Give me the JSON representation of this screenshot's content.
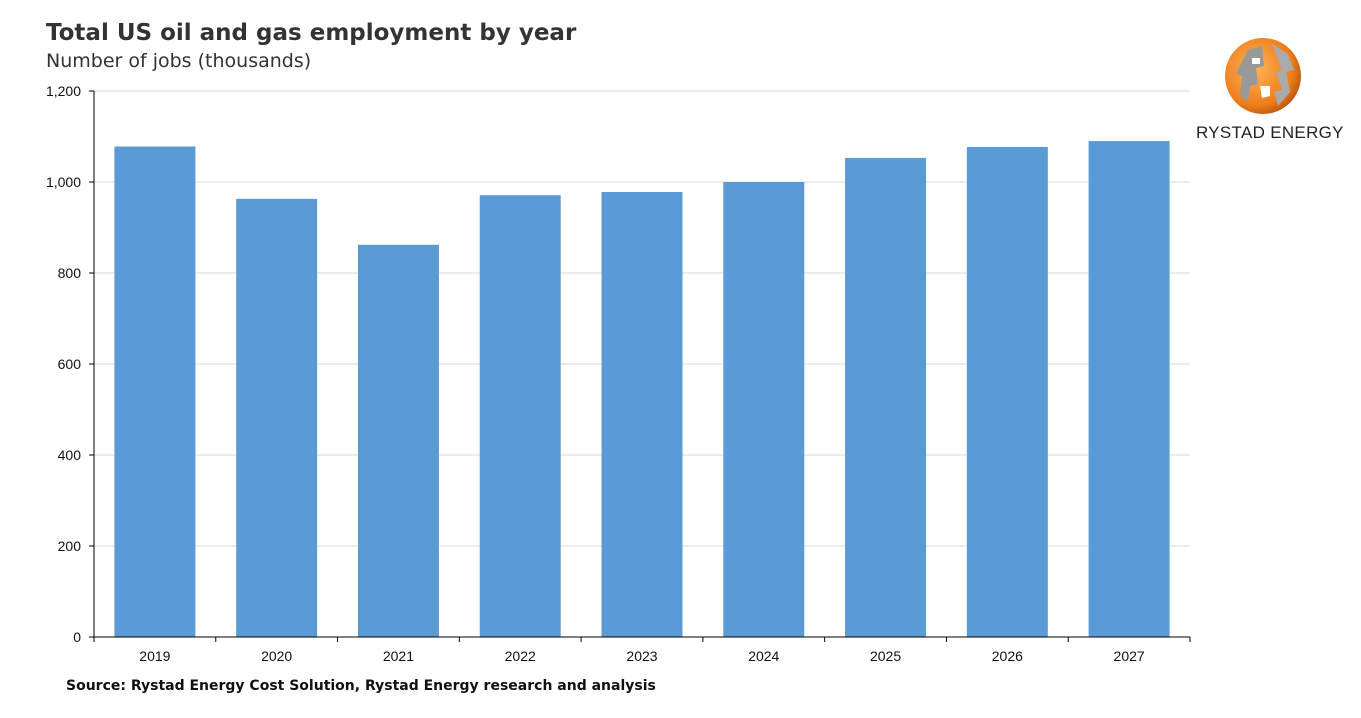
{
  "chart_data": {
    "type": "bar",
    "title": "Total US oil and gas employment by year",
    "subtitle": "Number of jobs (thousands)",
    "categories": [
      "2019",
      "2020",
      "2021",
      "2022",
      "2023",
      "2024",
      "2025",
      "2026",
      "2027"
    ],
    "values": [
      1078,
      963,
      862,
      971,
      978,
      1000,
      1053,
      1077,
      1090
    ],
    "ylim": [
      0,
      1200
    ],
    "yticks": [
      0,
      200,
      400,
      600,
      800,
      1000,
      1200
    ],
    "ytick_labels": [
      "0",
      "200",
      "400",
      "600",
      "800",
      "1,000",
      "1,200"
    ],
    "grid": true,
    "bar_color": "#5b9bd5",
    "xlabel": "",
    "ylabel": ""
  },
  "source": "Source: Rystad Energy Cost Solution,  Rystad Energy research and analysis",
  "logo": {
    "text": "RYSTAD ENERGY",
    "colors": [
      "#f08a24",
      "#8c8c8c"
    ]
  }
}
